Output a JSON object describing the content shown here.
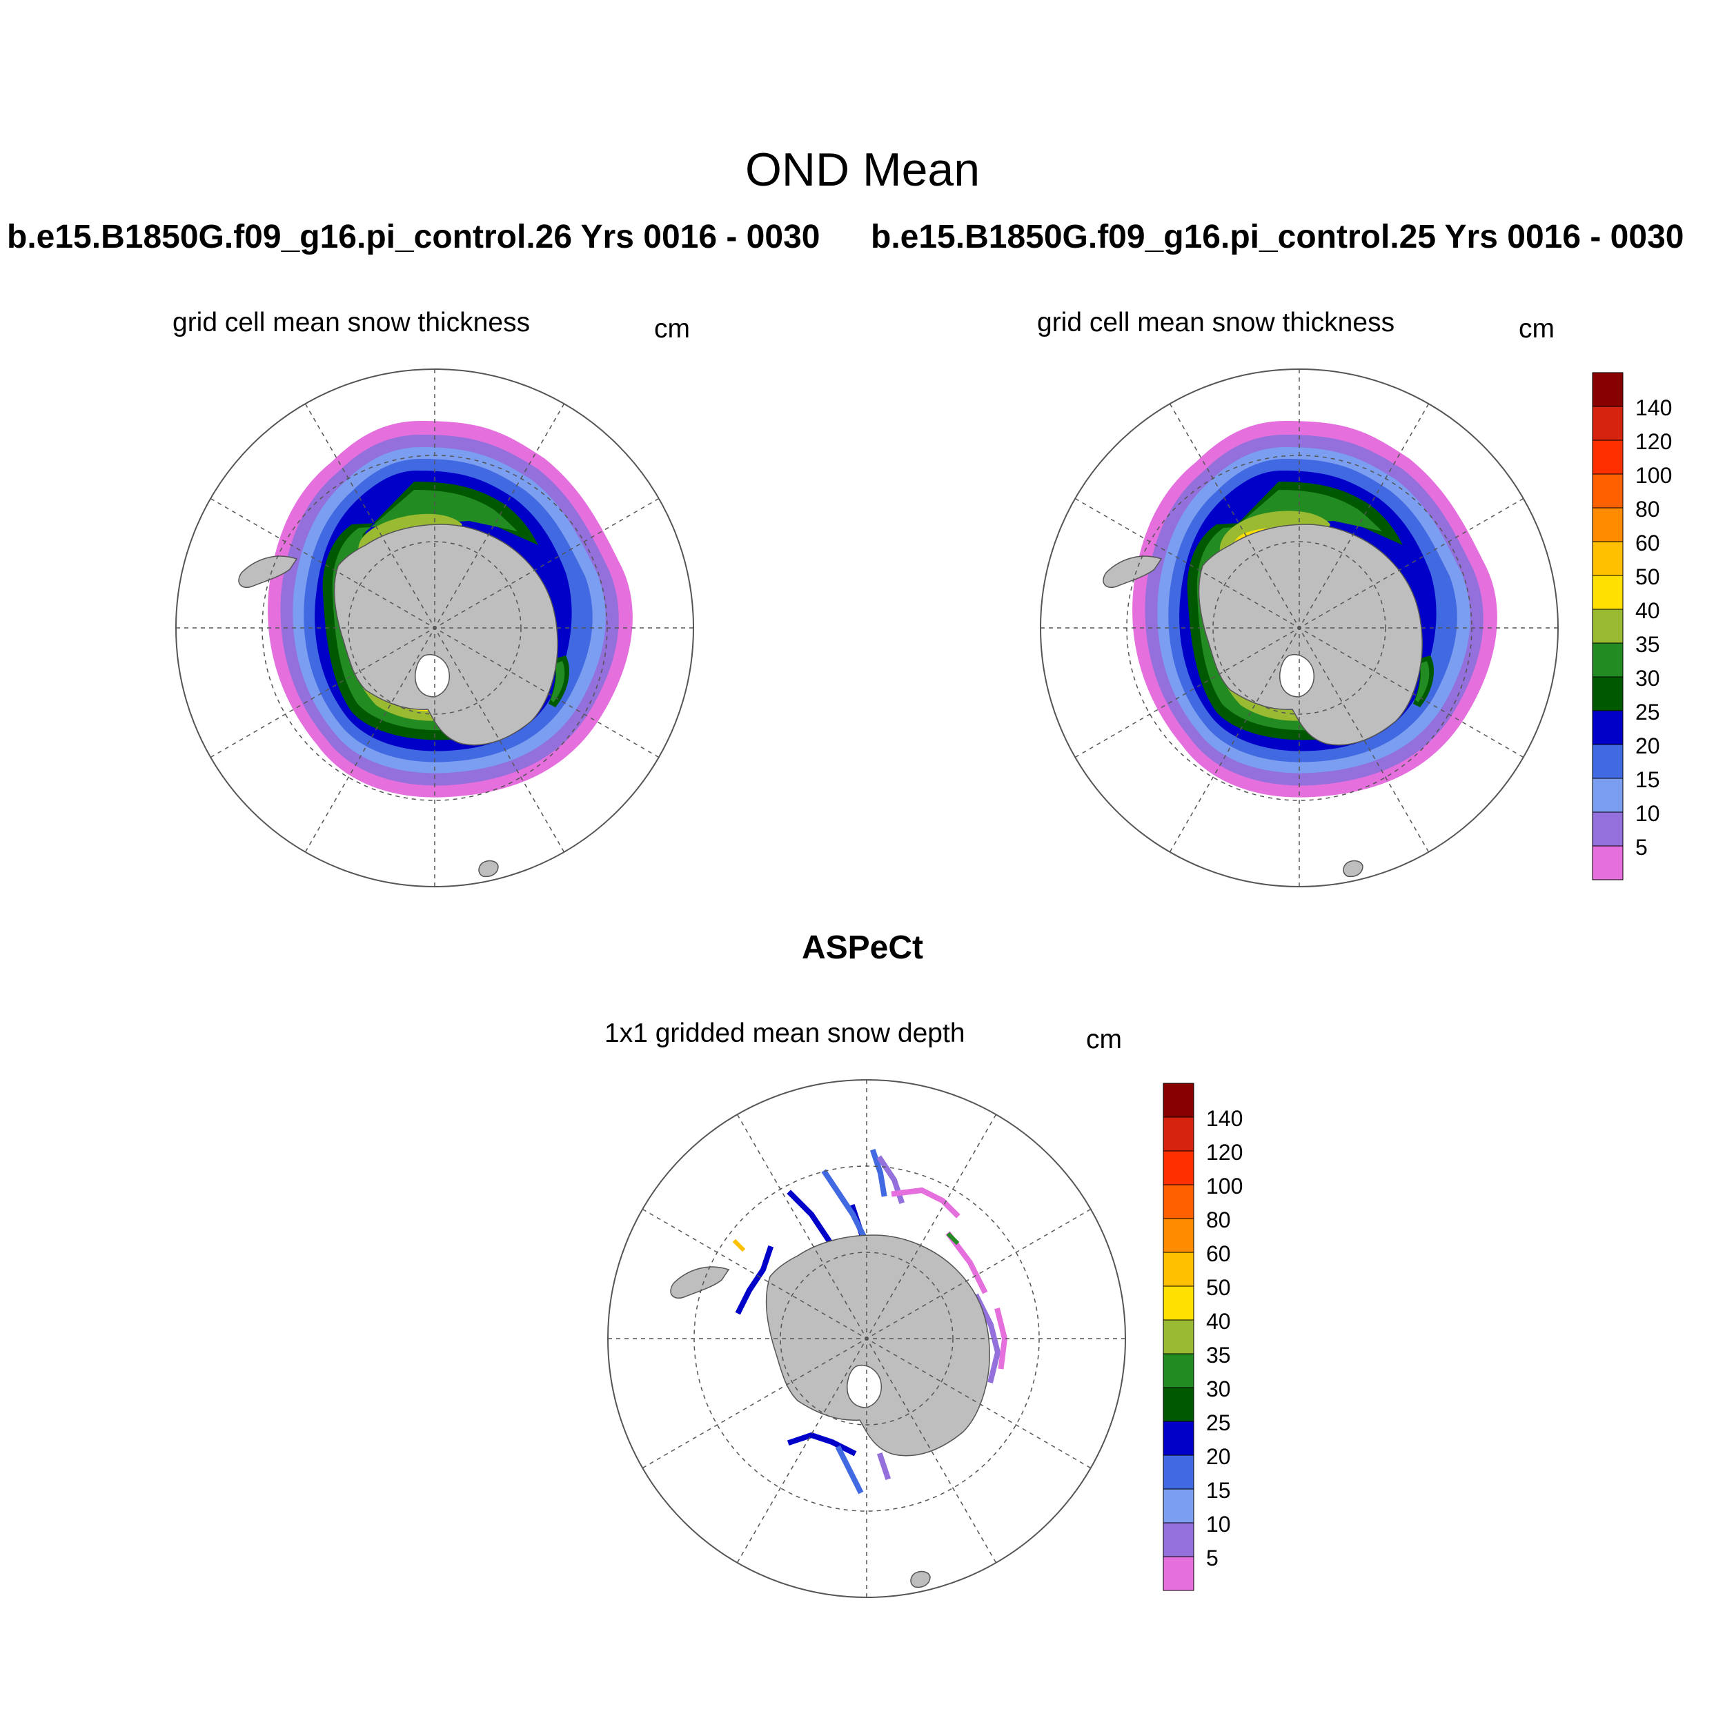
{
  "main_title": "OND Mean",
  "run_titles": [
    "b.e15.B1850G.f09_g16.pi_control.26  Yrs 0016 - 0030",
    "b.e15.B1850G.f09_g16.pi_control.25  Yrs 0016 - 0030"
  ],
  "panels": [
    {
      "id": "model-26",
      "subtitle": "grid cell mean snow thickness",
      "units": "cm"
    },
    {
      "id": "model-25",
      "subtitle": "grid cell mean snow thickness",
      "units": "cm"
    },
    {
      "id": "aspect",
      "subtitle": "1x1 gridded mean snow depth",
      "units": "cm"
    }
  ],
  "obs_title": "ASPeCt",
  "colorbar": {
    "labels": [
      "5",
      "10",
      "15",
      "20",
      "25",
      "30",
      "35",
      "40",
      "50",
      "60",
      "80",
      "100",
      "120",
      "140"
    ],
    "colors": [
      "#e46fdd",
      "#9370db",
      "#7b9ef0",
      "#4169e1",
      "#0000c8",
      "#005800",
      "#228b22",
      "#9aba32",
      "#ffe000",
      "#ffc000",
      "#ff8c00",
      "#ff6000",
      "#ff3000",
      "#d52310",
      "#870000"
    ]
  },
  "map": {
    "projection": "south-polar-stereographic",
    "land_color": "#bebebe",
    "grid_lines": "dashed"
  }
}
